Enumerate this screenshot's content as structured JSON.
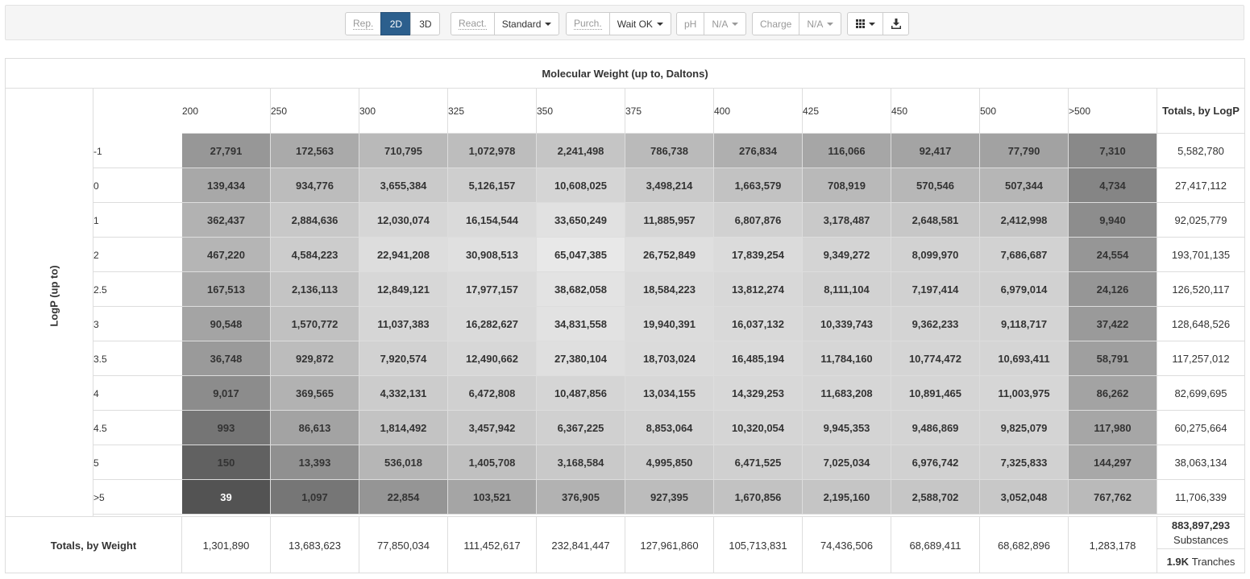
{
  "toolbar": {
    "rep_label": "Rep.",
    "rep_2d": "2D",
    "rep_3d": "3D",
    "react_label": "React.",
    "react_value": "Standard",
    "purch_label": "Purch.",
    "purch_value": "Wait OK",
    "ph_label": "pH",
    "ph_value": "N/A",
    "charge_label": "Charge",
    "charge_value": "N/A",
    "grid_icon": "grid-icon",
    "download_icon": "download-icon"
  },
  "table": {
    "title": "Molecular Weight (up to, Daltons)",
    "row_axis_label": "LogP (up to)",
    "columns": [
      "200",
      "250",
      "300",
      "325",
      "350",
      "375",
      "400",
      "425",
      "450",
      "500",
      ">500"
    ],
    "totals_by_logp_header": "Totals, by LogP",
    "rows": [
      {
        "label": "-1",
        "values": [
          "27,791",
          "172,563",
          "710,795",
          "1,072,978",
          "2,241,498",
          "786,738",
          "276,834",
          "116,066",
          "92,417",
          "77,790",
          "7,310"
        ],
        "total": "5,582,780"
      },
      {
        "label": "0",
        "values": [
          "139,434",
          "934,776",
          "3,655,384",
          "5,126,157",
          "10,608,025",
          "3,498,214",
          "1,663,579",
          "708,919",
          "570,546",
          "507,344",
          "4,734"
        ],
        "total": "27,417,112"
      },
      {
        "label": "1",
        "values": [
          "362,437",
          "2,884,636",
          "12,030,074",
          "16,154,544",
          "33,650,249",
          "11,885,957",
          "6,807,876",
          "3,178,487",
          "2,648,581",
          "2,412,998",
          "9,940"
        ],
        "total": "92,025,779"
      },
      {
        "label": "2",
        "values": [
          "467,220",
          "4,584,223",
          "22,941,208",
          "30,908,513",
          "65,047,385",
          "26,752,849",
          "17,839,254",
          "9,349,272",
          "8,099,970",
          "7,686,687",
          "24,554"
        ],
        "total": "193,701,135"
      },
      {
        "label": "2.5",
        "values": [
          "167,513",
          "2,136,113",
          "12,849,121",
          "17,977,157",
          "38,682,058",
          "18,584,223",
          "13,812,274",
          "8,111,104",
          "7,197,414",
          "6,979,014",
          "24,126"
        ],
        "total": "126,520,117"
      },
      {
        "label": "3",
        "values": [
          "90,548",
          "1,570,772",
          "11,037,383",
          "16,282,627",
          "34,831,558",
          "19,940,391",
          "16,037,132",
          "10,339,743",
          "9,362,233",
          "9,118,717",
          "37,422"
        ],
        "total": "128,648,526"
      },
      {
        "label": "3.5",
        "values": [
          "36,748",
          "929,872",
          "7,920,574",
          "12,490,662",
          "27,380,104",
          "18,703,024",
          "16,485,194",
          "11,784,160",
          "10,774,472",
          "10,693,411",
          "58,791"
        ],
        "total": "117,257,012"
      },
      {
        "label": "4",
        "values": [
          "9,017",
          "369,565",
          "4,332,131",
          "6,472,808",
          "10,487,856",
          "13,034,155",
          "14,329,253",
          "11,683,208",
          "10,891,465",
          "11,003,975",
          "86,262"
        ],
        "total": "82,699,695"
      },
      {
        "label": "4.5",
        "values": [
          "993",
          "86,613",
          "1,814,492",
          "3,457,942",
          "6,367,225",
          "8,853,064",
          "10,320,054",
          "9,945,353",
          "9,486,869",
          "9,825,079",
          "117,980"
        ],
        "total": "60,275,664"
      },
      {
        "label": "5",
        "values": [
          "150",
          "13,393",
          "536,018",
          "1,405,708",
          "3,168,584",
          "4,995,850",
          "6,471,525",
          "7,025,034",
          "6,976,742",
          "7,325,833",
          "144,297"
        ],
        "total": "38,063,134"
      },
      {
        "label": ">5",
        "values": [
          "39",
          "1,097",
          "22,854",
          "103,521",
          "376,905",
          "927,395",
          "1,670,856",
          "2,195,160",
          "2,588,702",
          "3,052,048",
          "767,762"
        ],
        "total": "11,706,339"
      }
    ],
    "totals_by_weight_label": "Totals, by Weight",
    "totals_by_weight": [
      "1,301,890",
      "13,683,623",
      "77,850,034",
      "111,452,617",
      "232,841,447",
      "127,961,860",
      "105,713,831",
      "74,436,506",
      "68,689,411",
      "68,682,896",
      "1,283,178"
    ],
    "grand_total": "883,897,293",
    "grand_total_unit": "Substances",
    "tranches_count": "1.9K",
    "tranches_label": "Tranches"
  }
}
